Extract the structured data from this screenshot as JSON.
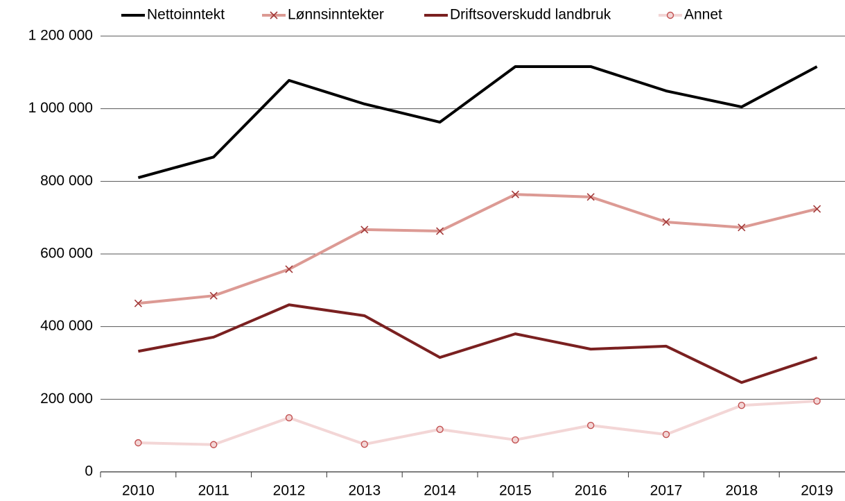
{
  "chart_data": {
    "type": "line",
    "categories": [
      "2010",
      "2011",
      "2012",
      "2013",
      "2014",
      "2015",
      "2016",
      "2017",
      "2018",
      "2019"
    ],
    "series": [
      {
        "name": "Nettoinntekt",
        "color": "#000000",
        "marker": "none",
        "values": [
          810000,
          867000,
          1078000,
          1013000,
          963000,
          1116000,
          1116000,
          1049000,
          1005000,
          1116000
        ]
      },
      {
        "name": "Lønnsinntekter",
        "color": "#dc9a94",
        "marker": "x",
        "marker_color": "#a33a3a",
        "values": [
          464000,
          485000,
          558000,
          667000,
          663000,
          764000,
          757000,
          688000,
          673000,
          724000
        ]
      },
      {
        "name": "Driftsoverskudd landbruk",
        "color": "#7a2020",
        "marker": "none",
        "values": [
          332000,
          371000,
          460000,
          430000,
          315000,
          380000,
          338000,
          346000,
          246000,
          315000
        ]
      },
      {
        "name": "Annet",
        "color": "#f3d6d6",
        "marker": "circle",
        "marker_color": "#c25050",
        "values": [
          80000,
          75000,
          149000,
          76000,
          117000,
          88000,
          128000,
          103000,
          183000,
          195000
        ]
      }
    ],
    "ylim": [
      0,
      1200000
    ],
    "yticks": [
      0,
      {
        "value": 200000,
        "label": "200 000"
      },
      {
        "value": 400000,
        "label": "400 000"
      },
      {
        "value": 600000,
        "label": "600 000"
      },
      {
        "value": 800000,
        "label": "800 000"
      },
      {
        "value": 1000000,
        "label": "1 000 000"
      },
      {
        "value": 1200000,
        "label": "1 200 000"
      }
    ],
    "grid": true,
    "legend": "top"
  }
}
